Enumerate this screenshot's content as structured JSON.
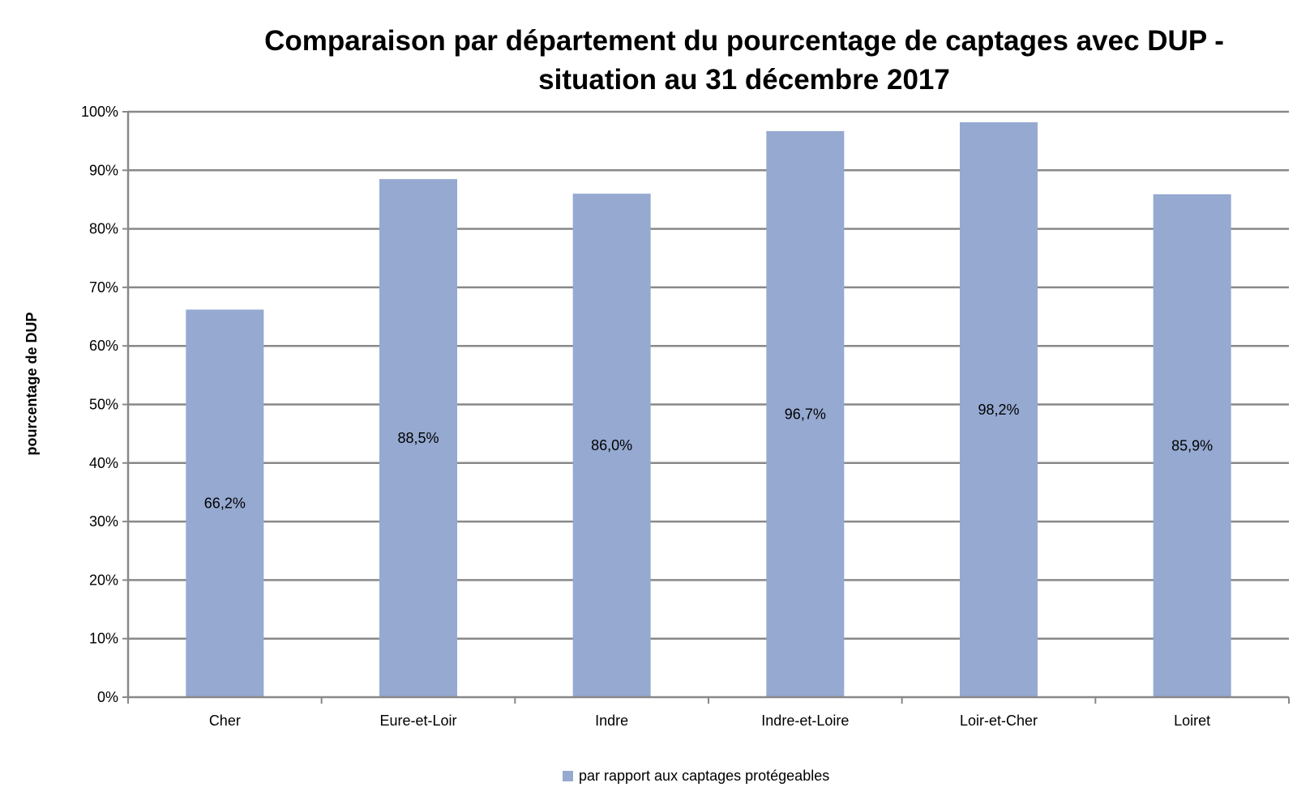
{
  "chart_data": {
    "type": "bar",
    "title_lines": [
      "Comparaison par département du pourcentage de captages avec DUP -",
      "situation au 31 décembre 2017"
    ],
    "xlabel": "",
    "ylabel": "pourcentage de DUP",
    "categories": [
      "Cher",
      "Eure-et-Loir",
      "Indre",
      "Indre-et-Loire",
      "Loir-et-Cher",
      "Loiret"
    ],
    "series": [
      {
        "name": "par rapport aux captages protégeables",
        "values": [
          66.2,
          88.5,
          86.0,
          96.7,
          98.2,
          85.9
        ],
        "data_labels": [
          "66,2%",
          "88,5%",
          "86,0%",
          "96,7%",
          "98,2%",
          "85,9%"
        ],
        "color": "#95A9D1"
      }
    ],
    "ylim": [
      0,
      100
    ],
    "yticks": [
      0,
      10,
      20,
      30,
      40,
      50,
      60,
      70,
      80,
      90,
      100
    ],
    "ytick_labels": [
      "0%",
      "10%",
      "20%",
      "30%",
      "40%",
      "50%",
      "60%",
      "70%",
      "80%",
      "90%",
      "100%"
    ],
    "grid": true,
    "grid_color": "#888888",
    "legend_position": "bottom"
  }
}
